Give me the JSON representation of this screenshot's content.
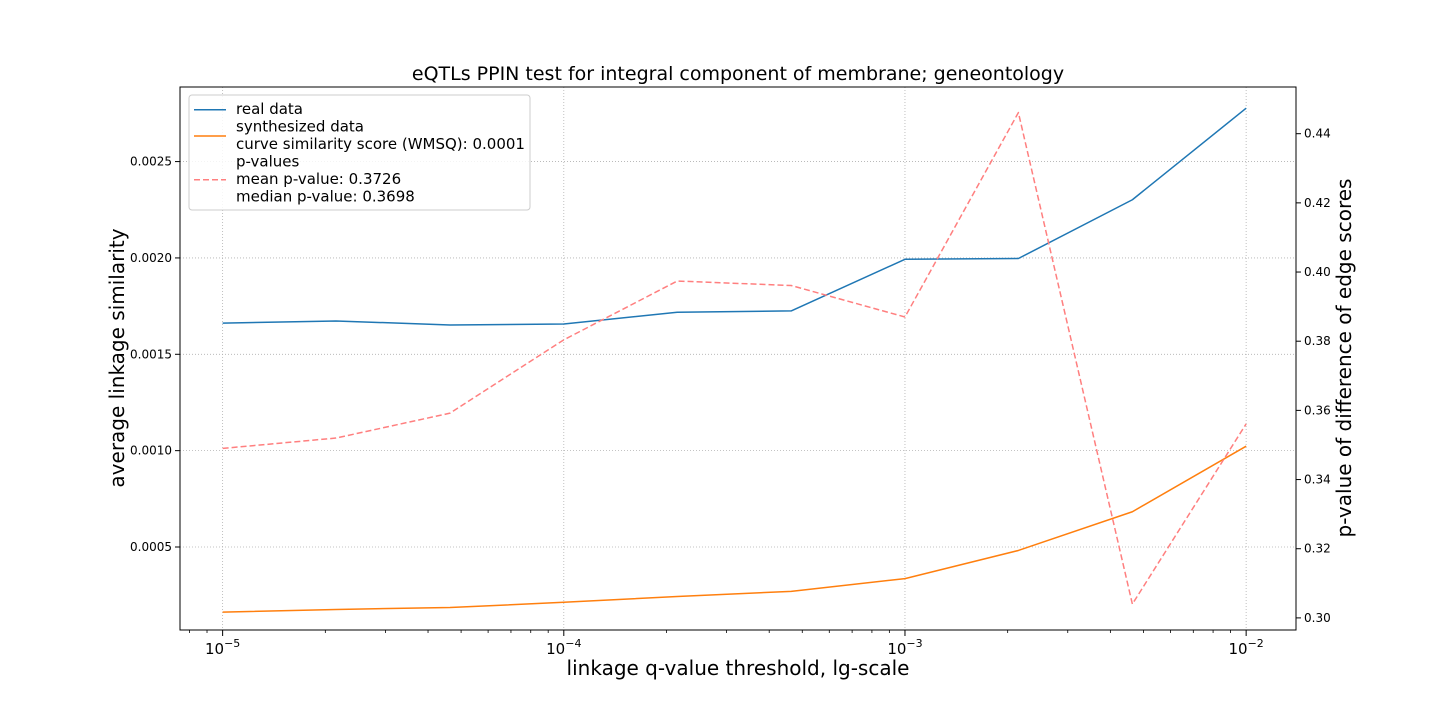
{
  "chart_data": {
    "type": "line",
    "title": "eQTLs PPIN test for integral component of membrane; geneontology",
    "xlabel": "linkage q-value threshold, lg-scale",
    "ylabel": "average linkage similarity",
    "y2label": "p-value of difference of edge scores",
    "xscale": "log",
    "xlim": [
      7.5e-06,
      0.014
    ],
    "ylim": [
      6.93e-05,
      0.002887
    ],
    "y2lim": [
      0.2965,
      0.4535
    ],
    "grid": true,
    "legend_position": "top-left",
    "x": [
      1e-05,
      2.15e-05,
      4.64e-05,
      0.0001,
      0.000215,
      0.000464,
      0.001,
      0.00215,
      0.00464,
      0.01
    ],
    "x_tick_labels": [
      {
        "value": 1e-05,
        "base": "10",
        "exp": "−5"
      },
      {
        "value": 0.0001,
        "base": "10",
        "exp": "−4"
      },
      {
        "value": 0.001,
        "base": "10",
        "exp": "−3"
      },
      {
        "value": 0.01,
        "base": "10",
        "exp": "−2"
      }
    ],
    "y_ticks": [
      {
        "value": 0.0005,
        "label": "0.0005"
      },
      {
        "value": 0.001,
        "label": "0.0010"
      },
      {
        "value": 0.0015,
        "label": "0.0015"
      },
      {
        "value": 0.002,
        "label": "0.0020"
      },
      {
        "value": 0.0025,
        "label": "0.0025"
      }
    ],
    "y2_ticks": [
      {
        "value": 0.3,
        "label": "0.30"
      },
      {
        "value": 0.32,
        "label": "0.32"
      },
      {
        "value": 0.34,
        "label": "0.34"
      },
      {
        "value": 0.36,
        "label": "0.36"
      },
      {
        "value": 0.38,
        "label": "0.38"
      },
      {
        "value": 0.4,
        "label": "0.40"
      },
      {
        "value": 0.42,
        "label": "0.42"
      },
      {
        "value": 0.44,
        "label": "0.44"
      }
    ],
    "series": [
      {
        "name": "real data",
        "axis": "left",
        "color": "#1f77b4",
        "dashed": false,
        "values": [
          0.001662,
          0.001673,
          0.001652,
          0.001657,
          0.001718,
          0.001725,
          0.001993,
          0.001997,
          0.002302,
          0.002777
        ]
      },
      {
        "name": "synthesized data",
        "axis": "left",
        "color": "#ff7f0e",
        "dashed": false,
        "values": [
          0.000162,
          0.000176,
          0.000186,
          0.000213,
          0.000243,
          0.00027,
          0.000336,
          0.000482,
          0.000683,
          0.001023
        ]
      },
      {
        "name": "p-values",
        "axis": "right",
        "color": "#ff7f7f",
        "dashed": true,
        "values": [
          0.349,
          0.352,
          0.3592,
          0.3804,
          0.3974,
          0.3961,
          0.387,
          0.4461,
          0.304,
          0.3561
        ]
      }
    ],
    "legend": [
      {
        "lines": [
          "real data"
        ],
        "color": "#1f77b4",
        "dashed": false
      },
      {
        "lines": [
          "synthesized data",
          "curve similarity score (WMSQ): 0.0001"
        ],
        "color": "#ff7f0e",
        "dashed": false
      },
      {
        "lines": [
          "p-values",
          "mean p-value: 0.3726",
          "median p-value: 0.3698"
        ],
        "color": "#ff7f7f",
        "dashed": true
      }
    ]
  }
}
